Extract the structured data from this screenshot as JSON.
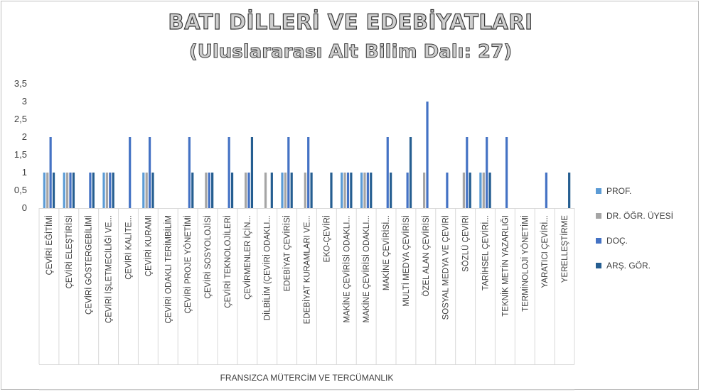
{
  "title": "BATI DİLLERİ VE EDEBİYATLARI",
  "subtitle": "(Uluslararası Alt Bilim Dalı: 27)",
  "chart_data": {
    "type": "bar",
    "xlabel": "FRANSIZCA MÜTERCİM VE TERCÜMANLIK",
    "ylabel": "",
    "ylim": [
      0,
      3.5
    ],
    "yticks": [
      "0",
      "0,5",
      "1",
      "1,5",
      "2",
      "2,5",
      "3",
      "3,5"
    ],
    "grid": false,
    "legend_position": "right",
    "categories": [
      "ÇEVİRİ EĞİTİMİ",
      "ÇEVİRİ ELEŞTİRİSİ",
      "ÇEVİRİ GÖSTERGEBİLİMİ",
      "ÇEVİRİ İŞLETMECİLİĞİ VE...",
      "ÇEVİRİ KALİTE...",
      "ÇEVİRİ KURAMI",
      "ÇEVİRİ ODAKLI TERİMBİLİM",
      "ÇEVİRİ PROJE YÖNETİMİ",
      "ÇEVİRİ SOSYOLOJİSİ",
      "ÇEVİRİ TEKNOLOJİLERİ",
      "ÇEVİRMENLER İÇİN...",
      "DİLBİLİM (ÇEVİRİ ODAKLI...",
      "EDEBİYAT ÇEVİRİSİ",
      "EDEBİYAT KURAMLARI VE...",
      "EKO-ÇEVİRİ",
      "MAKİNE ÇEVİRİSİ ODAKLI...",
      "MAKİNE ÇEVİRİSİ ODAKLI...",
      "MAKİNE ÇEVİRİSİ...",
      "MULTİ MEDYA ÇEVİRİSİ",
      "ÖZEL ALAN ÇEVİRİSİ",
      "SOSYAL MEDYA VE ÇEVİRİ",
      "SÖZLÜ ÇEVİRİ",
      "TARİHSEL ÇEVİRİ...",
      "TEKNİK METİN YAZARLIĞI",
      "TERMİNOLOJİ YÖNETİMİ",
      "YARATICI ÇEVİRİ...",
      "YERELLEŞTİRME"
    ],
    "series": [
      {
        "name": "PROF.",
        "color": "#5b9bd5",
        "values": [
          1,
          1,
          0,
          1,
          0,
          1,
          0,
          0,
          0,
          0,
          0,
          0,
          1,
          0,
          0,
          1,
          1,
          0,
          0,
          0,
          0,
          0,
          1,
          0,
          0,
          0,
          0
        ]
      },
      {
        "name": "DR. ÖĞR. ÜYESİ",
        "color": "#a5a5a5",
        "values": [
          1,
          1,
          0,
          1,
          0,
          1,
          0,
          0,
          1,
          0,
          1,
          1,
          1,
          1,
          0,
          1,
          1,
          0,
          0,
          1,
          0,
          1,
          1,
          0,
          0,
          0,
          0
        ]
      },
      {
        "name": "DOÇ.",
        "color": "#4472c4",
        "values": [
          2,
          1,
          1,
          1,
          2,
          2,
          0,
          2,
          1,
          2,
          1,
          0,
          2,
          2,
          0,
          1,
          1,
          2,
          1,
          3,
          1,
          2,
          2,
          2,
          0,
          1,
          0
        ]
      },
      {
        "name": "ARŞ. GÖR.",
        "color": "#255e91",
        "values": [
          1,
          1,
          1,
          1,
          0,
          1,
          0,
          1,
          1,
          1,
          2,
          1,
          1,
          1,
          1,
          1,
          1,
          1,
          2,
          0,
          0,
          1,
          1,
          0,
          0,
          0,
          1
        ]
      }
    ]
  }
}
